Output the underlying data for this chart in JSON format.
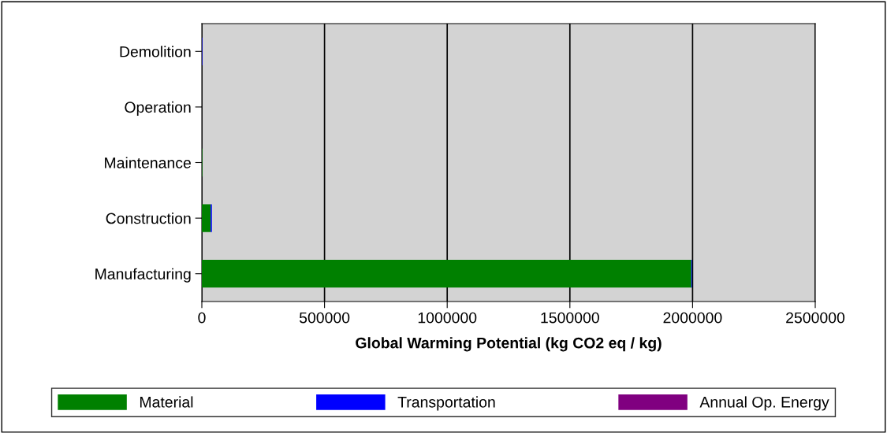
{
  "chart_data": {
    "type": "bar",
    "orientation": "horizontal",
    "stacked": true,
    "xlabel": "Global Warming Potential (kg CO2 eq / kg)",
    "categories": [
      "Demolition",
      "Operation",
      "Maintenance",
      "Construction",
      "Manufacturing"
    ],
    "series": [
      {
        "name": "Material",
        "color": "#008000",
        "values": [
          0,
          0,
          2000,
          36000,
          1995000
        ]
      },
      {
        "name": "Transportation",
        "color": "#0000ff",
        "values": [
          2000,
          0,
          0,
          5000,
          3000
        ]
      },
      {
        "name": "Annual Op. Energy",
        "color": "#800080",
        "values": [
          0,
          0,
          0,
          0,
          0
        ]
      }
    ],
    "xlim": [
      0,
      2500000
    ],
    "xticks": [
      0,
      500000,
      1000000,
      1500000,
      2000000,
      2500000
    ],
    "grid": "x",
    "legend": "bottom"
  }
}
